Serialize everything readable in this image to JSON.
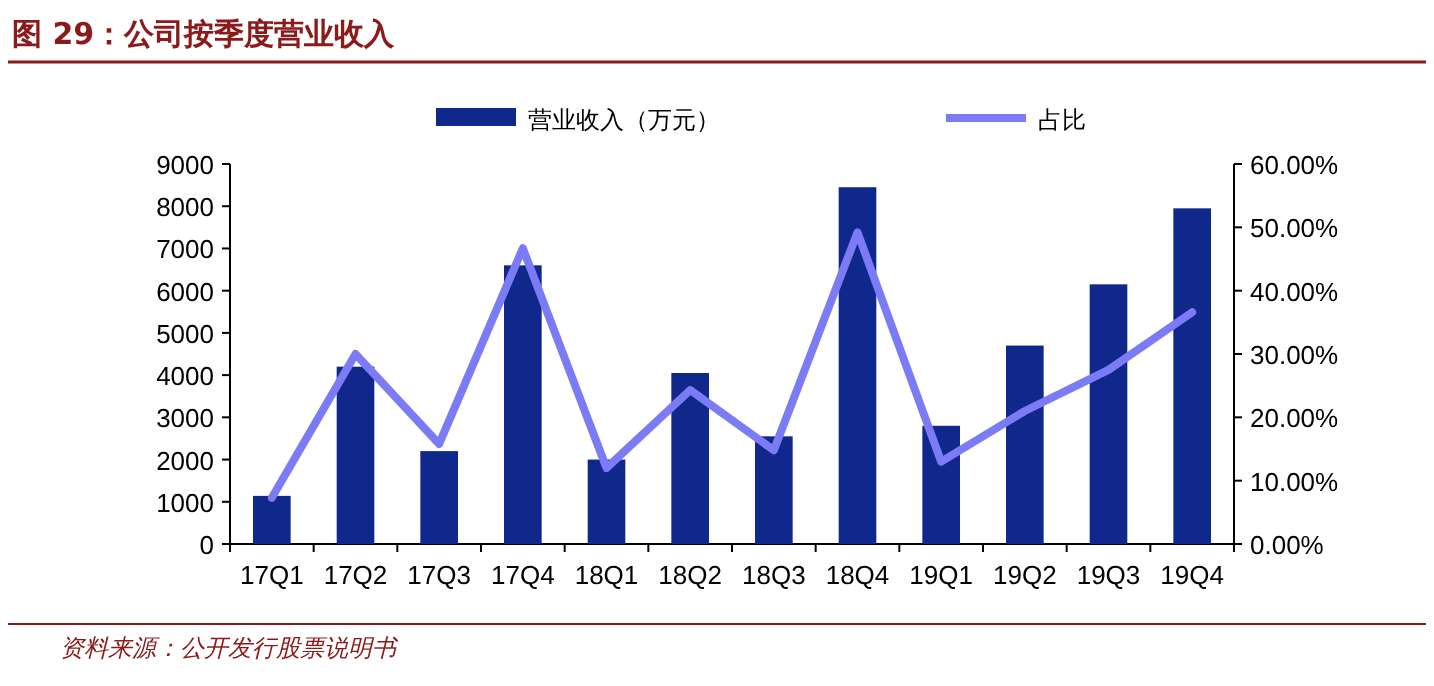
{
  "chart_data": {
    "type": "bar",
    "title": "图 29：公司按季度营业收入",
    "categories": [
      "17Q1",
      "17Q2",
      "17Q3",
      "17Q4",
      "18Q1",
      "18Q2",
      "18Q3",
      "18Q4",
      "19Q1",
      "19Q2",
      "19Q3",
      "19Q4"
    ],
    "series": [
      {
        "name": "营业收入（万元）",
        "color": "#10288c",
        "values": [
          1140,
          4200,
          2200,
          6600,
          2000,
          4050,
          2550,
          8450,
          2800,
          4700,
          6150,
          7950
        ]
      },
      {
        "name": "占比",
        "type": "line",
        "axis": "y2",
        "color": "#7b7bf5",
        "values": [
          7.3,
          30,
          15.8,
          46.7,
          12,
          24.3,
          14.8,
          49.2,
          13,
          21,
          27.5,
          36.6
        ]
      }
    ],
    "ylim": [
      0,
      9000
    ],
    "yticks": [
      0,
      1000,
      2000,
      3000,
      4000,
      5000,
      6000,
      7000,
      8000,
      9000
    ],
    "y2lim": [
      0,
      60
    ],
    "y2ticks": [
      {
        "value": 0,
        "label": "0.00%"
      },
      {
        "value": 10,
        "label": "10.00%"
      },
      {
        "value": 20,
        "label": "20.00%"
      },
      {
        "value": 30,
        "label": "30.00%"
      },
      {
        "value": 40,
        "label": "40.00%"
      },
      {
        "value": 50,
        "label": "50.00%"
      },
      {
        "value": 60,
        "label": "60.00%"
      }
    ],
    "legend": "top",
    "grid": false,
    "marker": "none",
    "line_style": "solid",
    "annotations": [
      "资料来源：公开发行股票说明书"
    ]
  }
}
